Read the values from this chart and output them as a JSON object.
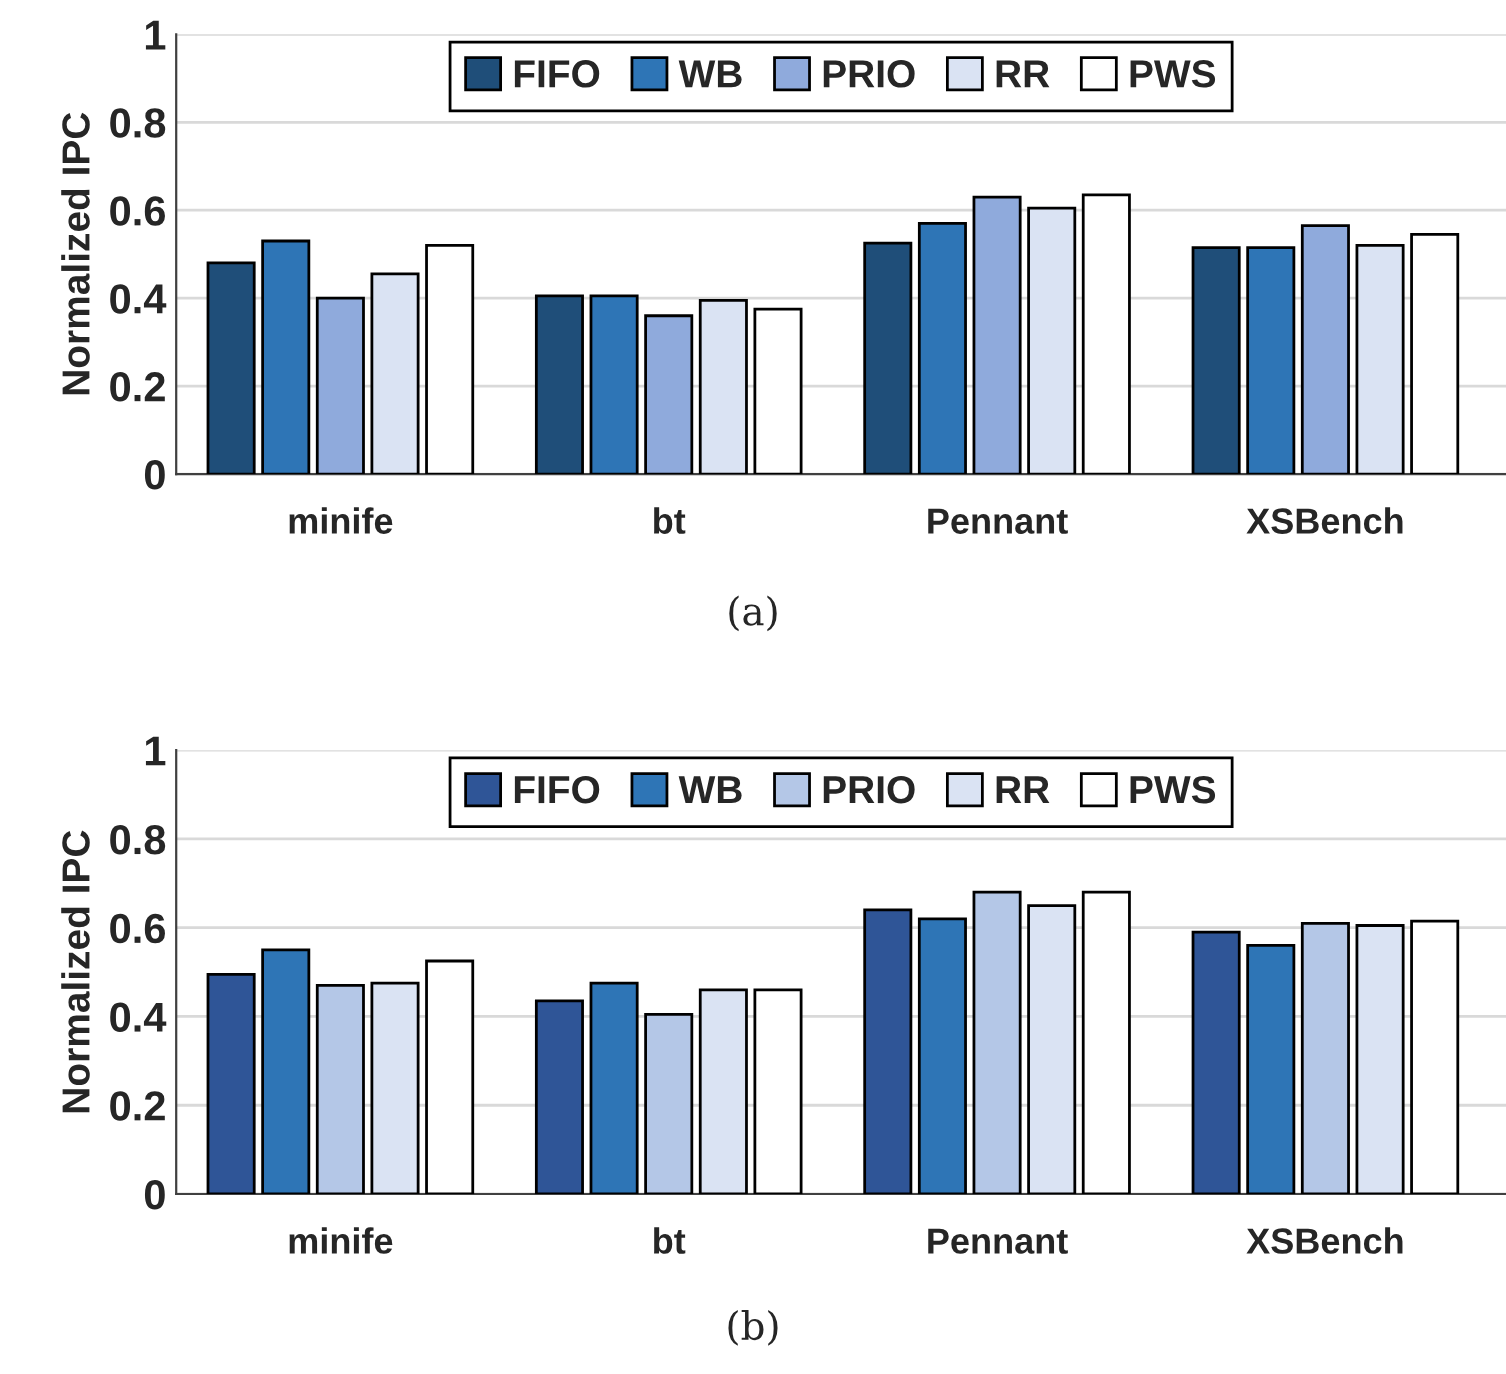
{
  "chart_data": [
    {
      "type": "bar",
      "ylabel": "Normalized IPC",
      "categories": [
        "minife",
        "bt",
        "Pennant",
        "XSBench"
      ],
      "ylim": [
        0,
        1
      ],
      "yticks": [
        0,
        0.2,
        0.4,
        0.6,
        0.8,
        1
      ],
      "grid": "y",
      "legend": "top",
      "annotations": [
        "(a)"
      ],
      "series": [
        {
          "name": "FIFO",
          "color": "#1f4e79",
          "values": [
            0.48,
            0.405,
            0.525,
            0.515
          ]
        },
        {
          "name": "WB",
          "color": "#2e75b6",
          "values": [
            0.53,
            0.405,
            0.57,
            0.515
          ]
        },
        {
          "name": "PRIO",
          "color": "#8faadc",
          "values": [
            0.4,
            0.36,
            0.63,
            0.565
          ]
        },
        {
          "name": "RR",
          "color": "#dae3f3",
          "values": [
            0.455,
            0.395,
            0.605,
            0.52
          ]
        },
        {
          "name": "PWS",
          "color": "#ffffff",
          "values": [
            0.52,
            0.375,
            0.635,
            0.545
          ]
        }
      ]
    },
    {
      "type": "bar",
      "ylabel": "Normalized IPC",
      "categories": [
        "minife",
        "bt",
        "Pennant",
        "XSBench"
      ],
      "ylim": [
        0,
        1
      ],
      "yticks": [
        0,
        0.2,
        0.4,
        0.6,
        0.8,
        1
      ],
      "grid": "y",
      "legend": "top",
      "annotations": [
        "(b)"
      ],
      "series": [
        {
          "name": "FIFO",
          "color": "#2f5597",
          "values": [
            0.495,
            0.435,
            0.64,
            0.59
          ]
        },
        {
          "name": "WB",
          "color": "#2e75b6",
          "values": [
            0.55,
            0.475,
            0.62,
            0.56
          ]
        },
        {
          "name": "PRIO",
          "color": "#b4c7e7",
          "values": [
            0.47,
            0.405,
            0.68,
            0.61
          ]
        },
        {
          "name": "RR",
          "color": "#dae3f3",
          "values": [
            0.475,
            0.46,
            0.65,
            0.605
          ]
        },
        {
          "name": "PWS",
          "color": "#ffffff",
          "values": [
            0.525,
            0.46,
            0.68,
            0.615
          ]
        }
      ]
    }
  ]
}
